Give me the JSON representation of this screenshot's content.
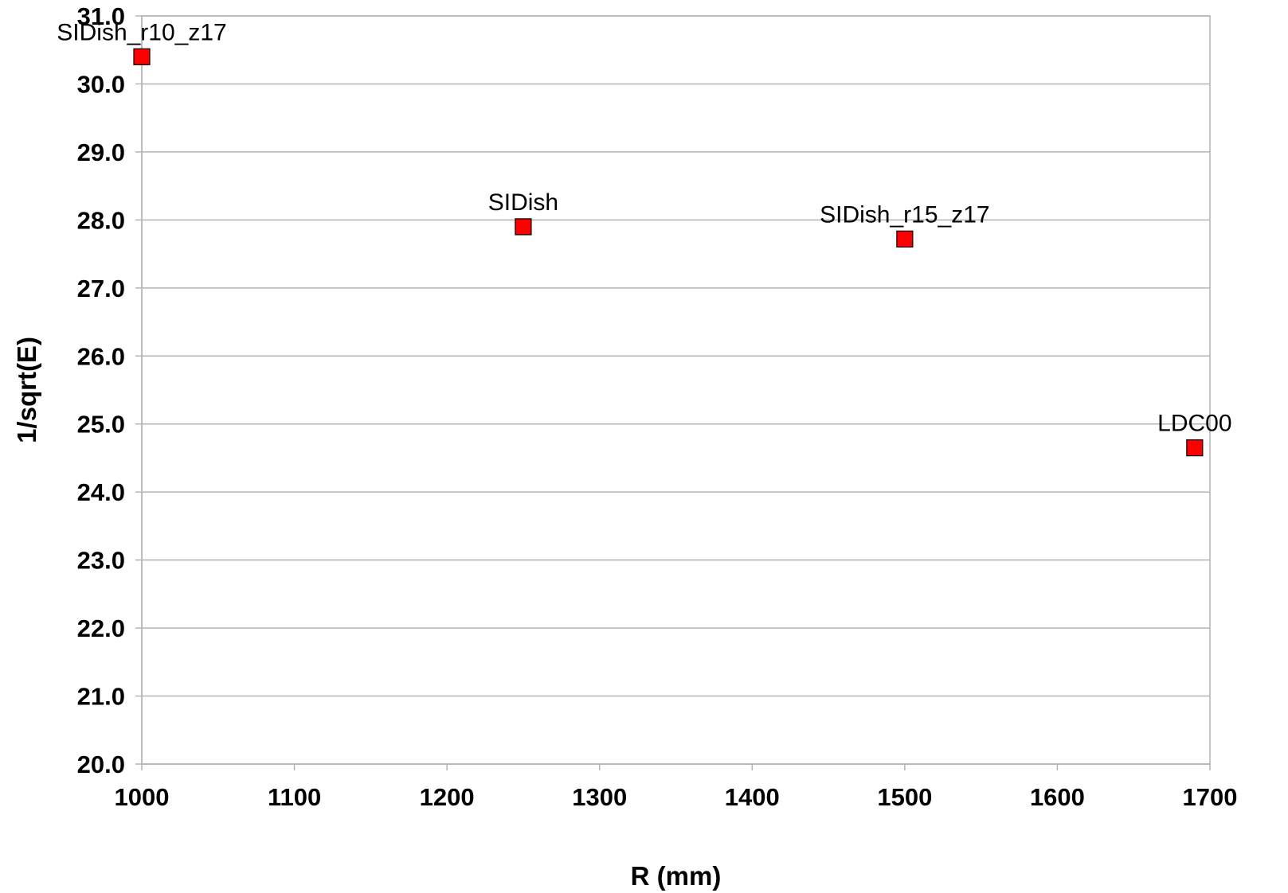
{
  "chart_data": {
    "type": "scatter",
    "title": "",
    "xlabel": "R (mm)",
    "ylabel": "1/sqrt(E)",
    "xlim": [
      1000,
      1700
    ],
    "ylim": [
      20.0,
      31.0
    ],
    "x_ticks": [
      "1000",
      "1100",
      "1200",
      "1300",
      "1400",
      "1500",
      "1600",
      "1700"
    ],
    "y_ticks": [
      "20.0",
      "21.0",
      "22.0",
      "23.0",
      "24.0",
      "25.0",
      "26.0",
      "27.0",
      "28.0",
      "29.0",
      "30.0",
      "31.0"
    ],
    "grid": "horizontal",
    "legend": "none",
    "marker": "square",
    "marker_color": "#ff0000",
    "series": [
      {
        "points": [
          {
            "x": 1000,
            "y": 30.4,
            "label": "SIDish_r10_z17"
          },
          {
            "x": 1250,
            "y": 27.9,
            "label": "SIDish"
          },
          {
            "x": 1500,
            "y": 27.72,
            "label": "SIDish_r15_z17"
          },
          {
            "x": 1690,
            "y": 24.65,
            "label": "LDC00"
          }
        ]
      }
    ]
  }
}
